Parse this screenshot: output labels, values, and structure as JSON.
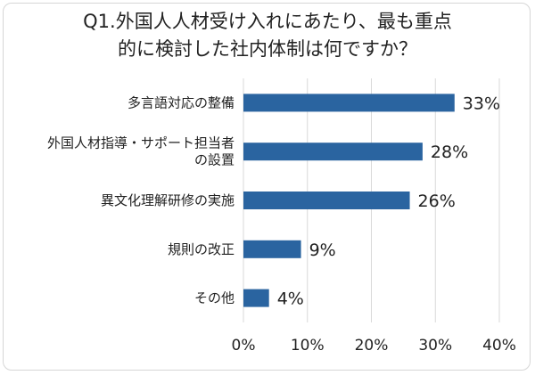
{
  "chart_data": {
    "type": "bar",
    "orientation": "horizontal",
    "title_lines": [
      "Q1.外国人人材受け入れにあたり、最も重点",
      "的に検討した社内体制は何ですか？"
    ],
    "categories": [
      [
        "多言語対応の整備"
      ],
      [
        "外国人材指導・サポート担当者",
        "の設置"
      ],
      [
        "異文化理解研修の実施"
      ],
      [
        "規則の改正"
      ],
      [
        "その他"
      ]
    ],
    "values": [
      33,
      28,
      26,
      9,
      4
    ],
    "value_labels": [
      "33%",
      "28%",
      "26%",
      "9%",
      "4%"
    ],
    "xlim": [
      0,
      40
    ],
    "xticks": [
      0,
      10,
      20,
      30,
      40
    ],
    "xtick_labels": [
      "0%",
      "10%",
      "20%",
      "30%",
      "40%"
    ],
    "grid": "vertical",
    "bar_color": "#2a64a0",
    "grid_color": "#d9d9d9"
  }
}
